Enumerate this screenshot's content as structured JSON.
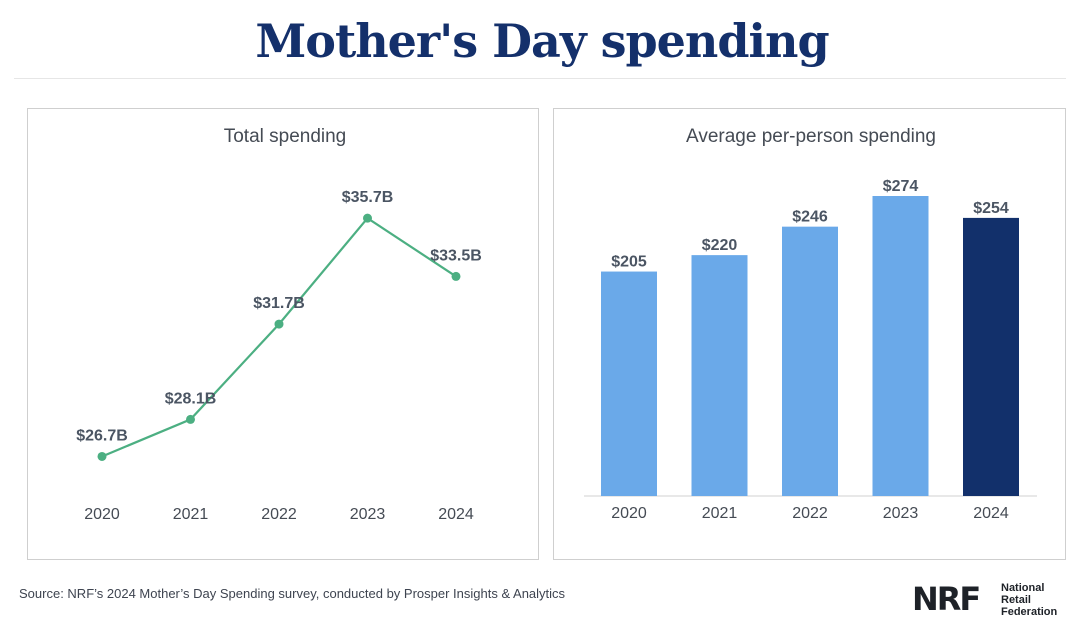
{
  "header": {
    "title": "Mother's Day spending"
  },
  "chart_data": [
    {
      "type": "line",
      "title": "Total spending",
      "categories": [
        "2020",
        "2021",
        "2022",
        "2023",
        "2024"
      ],
      "values": [
        26.7,
        28.1,
        31.7,
        35.7,
        33.5
      ],
      "data_labels": [
        "$26.7B",
        "$28.1B",
        "$31.7B",
        "$35.7B",
        "$33.5B"
      ],
      "unit": "$B",
      "ylim": [
        26,
        36.5
      ],
      "grid": false,
      "color": "#4caf82"
    },
    {
      "type": "bar",
      "title": "Average per-person spending",
      "categories": [
        "2020",
        "2021",
        "2022",
        "2023",
        "2024"
      ],
      "values": [
        205,
        220,
        246,
        274,
        254
      ],
      "data_labels": [
        "$205",
        "$220",
        "$246",
        "$274",
        "$254"
      ],
      "unit": "$",
      "ylim": [
        0,
        274
      ],
      "grid": false,
      "colors": [
        "#6aa9e9",
        "#6aa9e9",
        "#6aa9e9",
        "#6aa9e9",
        "#12306b"
      ]
    }
  ],
  "footer": {
    "source": "Source: NRF’s 2024 Mother’s Day Spending survey, conducted by Prosper Insights & Analytics",
    "logo_mark": "NRF",
    "logo_lines": [
      "National",
      "Retail",
      "Federation"
    ]
  }
}
